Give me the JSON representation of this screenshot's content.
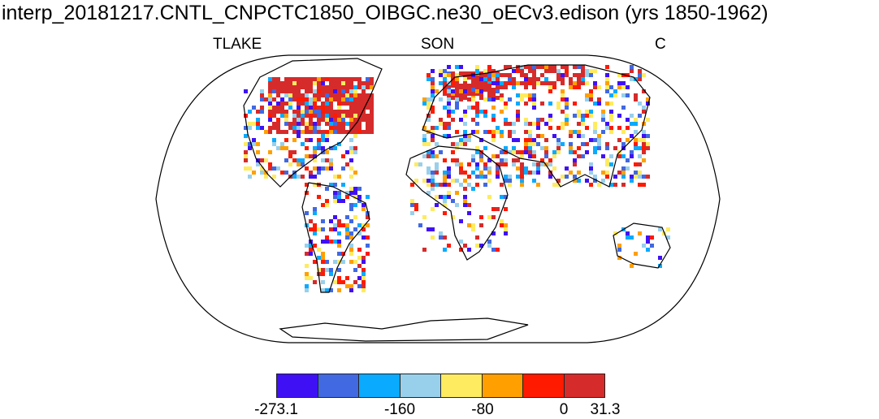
{
  "title": "interp_20181217.CNTL_CNPCTC1850_OIBGC.ne30_oECv3.edison (yrs 1850-1962)",
  "left_label": "TLAKE",
  "center_label": "SON",
  "right_label": "C",
  "colorbar": {
    "colors": [
      "#4010f5",
      "#4169e1",
      "#0aaaff",
      "#98d0ec",
      "#ffeb60",
      "#ffa000",
      "#ff1a00",
      "#d62b2b"
    ],
    "tick_labels": [
      "-273.1",
      "-160",
      "-80",
      "0",
      "31.3"
    ]
  }
}
